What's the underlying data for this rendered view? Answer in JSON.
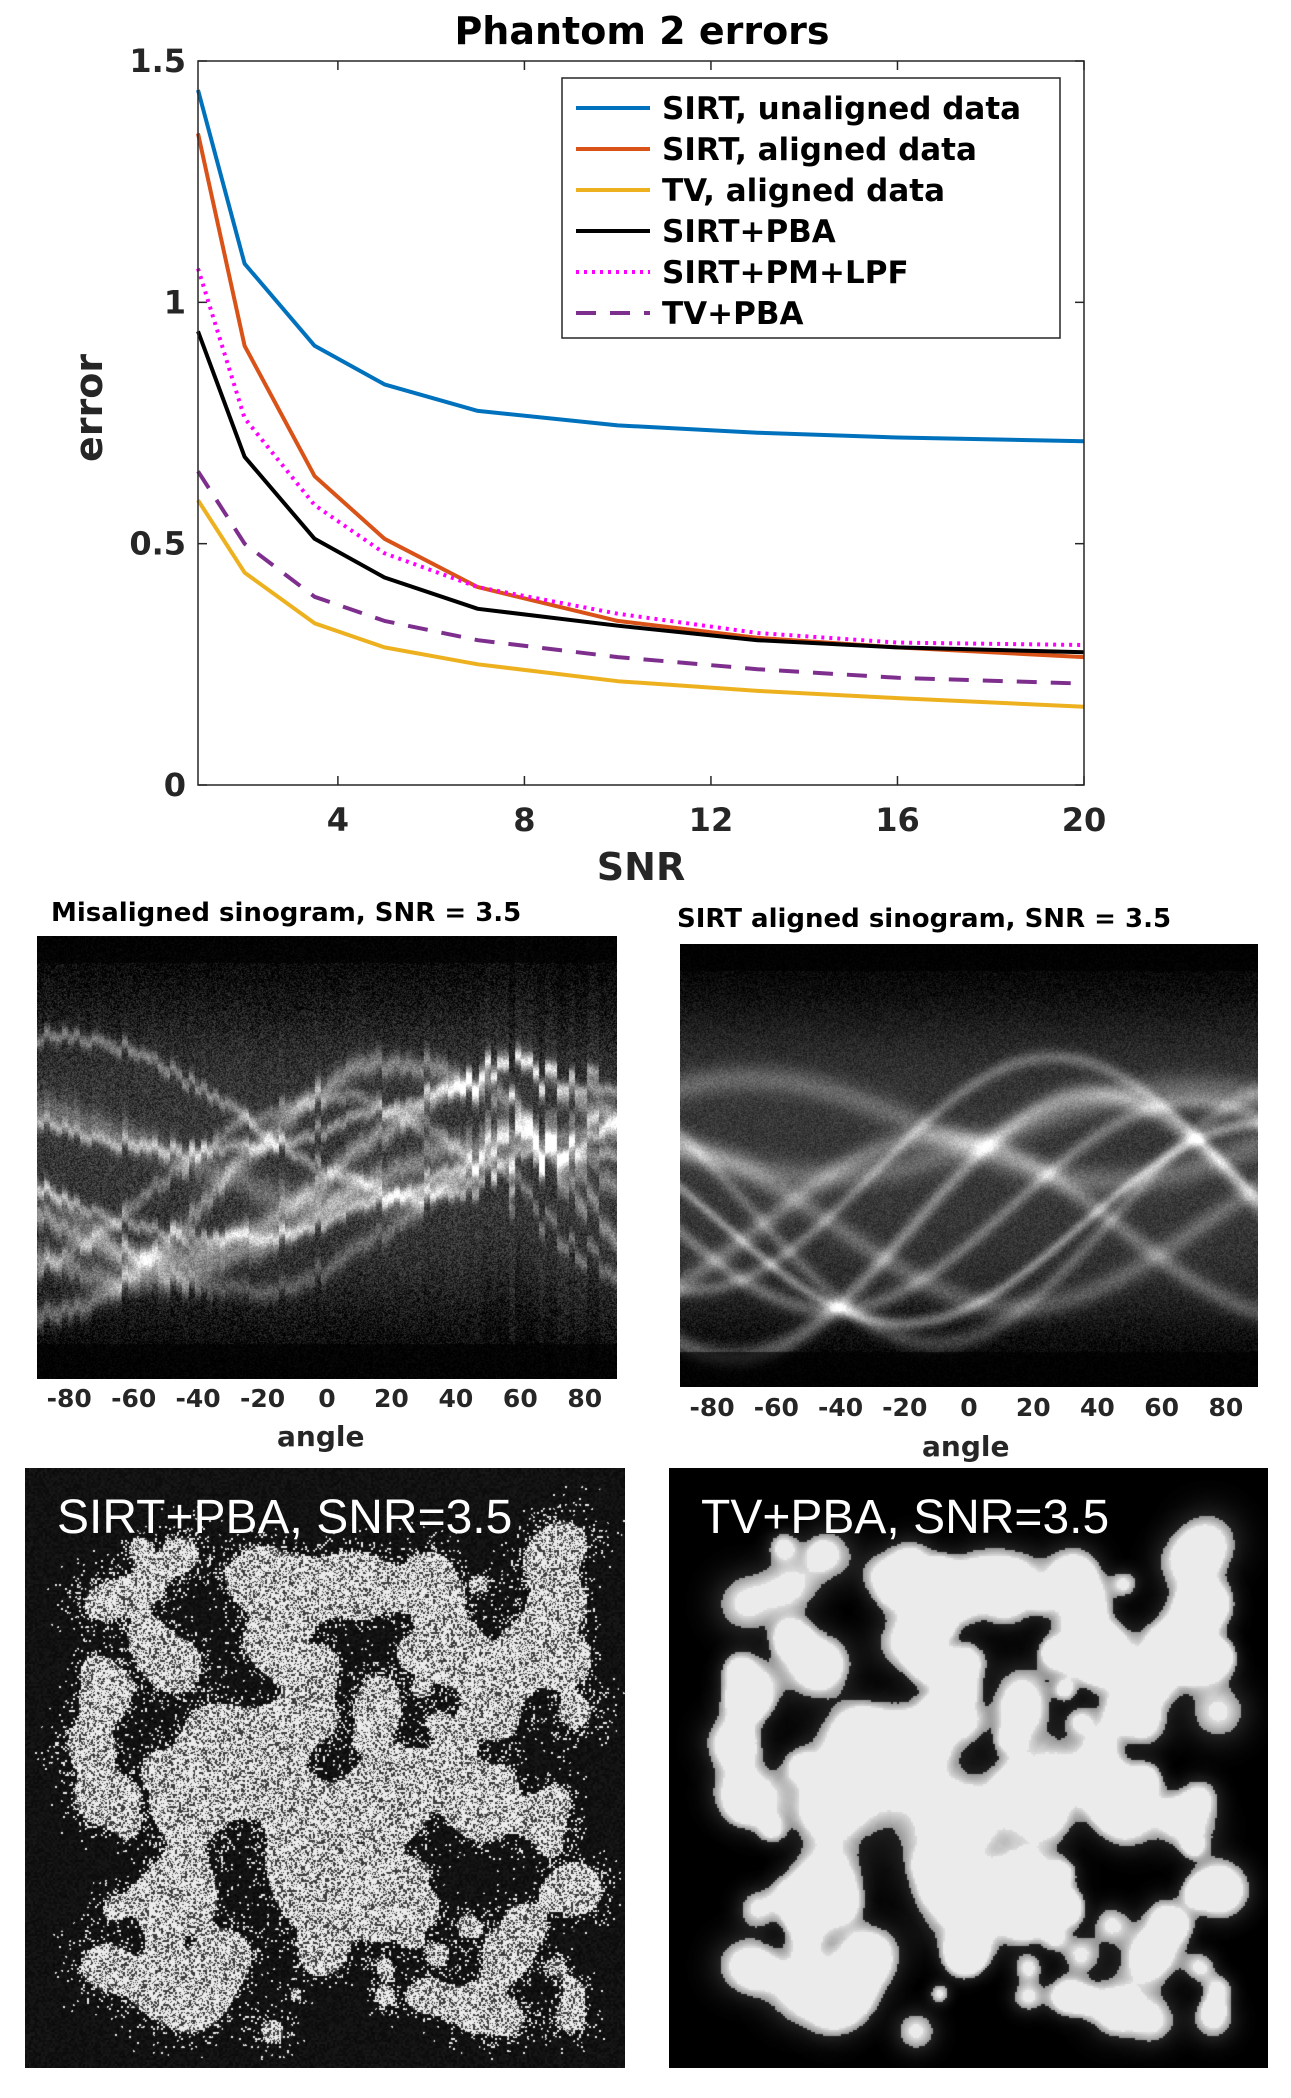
{
  "chart_data": {
    "type": "line",
    "title": "Phantom 2 errors",
    "xlabel": "SNR",
    "ylabel": "error",
    "xlim": [
      1,
      20
    ],
    "ylim": [
      0,
      1.5
    ],
    "xticks": [
      4,
      8,
      12,
      16,
      20
    ],
    "yticks": [
      0,
      0.5,
      1,
      1.5
    ],
    "ytick_labels": [
      "0",
      "0.5",
      "1",
      "1.5"
    ],
    "grid": false,
    "legend_position": "top-right",
    "x": [
      1,
      2,
      3.5,
      5,
      7,
      10,
      13,
      16,
      20
    ],
    "series": [
      {
        "name": "SIRT, unaligned data",
        "color": "#0072BD",
        "style": "solid",
        "values": [
          1.44,
          1.08,
          0.91,
          0.83,
          0.775,
          0.745,
          0.73,
          0.72,
          0.712
        ]
      },
      {
        "name": "SIRT, aligned data",
        "color": "#D95319",
        "style": "solid",
        "values": [
          1.35,
          0.91,
          0.64,
          0.51,
          0.41,
          0.34,
          0.305,
          0.285,
          0.265
        ]
      },
      {
        "name": "TV, aligned data",
        "color": "#EDB120",
        "style": "solid",
        "values": [
          0.59,
          0.44,
          0.335,
          0.285,
          0.25,
          0.215,
          0.195,
          0.18,
          0.162
        ]
      },
      {
        "name": "SIRT+PBA",
        "color": "#000000",
        "style": "solid",
        "values": [
          0.94,
          0.68,
          0.51,
          0.43,
          0.365,
          0.33,
          0.3,
          0.285,
          0.275
        ]
      },
      {
        "name": "SIRT+PM+LPF",
        "color": "#FF00FF",
        "style": "dotted",
        "values": [
          1.07,
          0.76,
          0.58,
          0.48,
          0.41,
          0.355,
          0.315,
          0.295,
          0.29
        ]
      },
      {
        "name": "TV+PBA",
        "color": "#7E2F8E",
        "style": "dashed",
        "values": [
          0.65,
          0.5,
          0.39,
          0.34,
          0.3,
          0.265,
          0.24,
          0.222,
          0.21
        ]
      }
    ]
  },
  "sinograms": [
    {
      "title": "Misaligned sinogram, SNR = 3.5",
      "xlabel": "angle",
      "ticks": [
        "-80",
        "-60",
        "-40",
        "-20",
        "0",
        "20",
        "40",
        "60",
        "80"
      ],
      "aligned": false
    },
    {
      "title": "SIRT aligned sinogram, SNR = 3.5",
      "xlabel": "angle",
      "ticks": [
        "-80",
        "-60",
        "-40",
        "-20",
        "0",
        "20",
        "40",
        "60",
        "80"
      ],
      "aligned": true
    }
  ],
  "reconstructions": [
    {
      "label": "SIRT+PBA, SNR=3.5"
    },
    {
      "label": "TV+PBA, SNR=3.5"
    }
  ]
}
